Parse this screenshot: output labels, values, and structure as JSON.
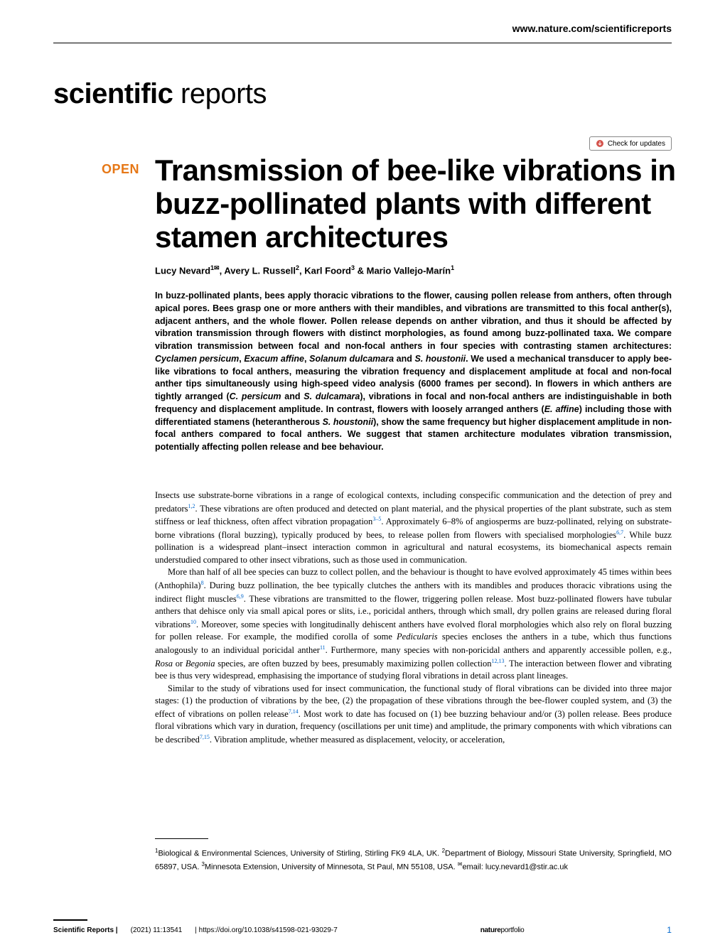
{
  "header": {
    "url": "www.nature.com/scientificreports",
    "journal_bold": "scientific",
    "journal_thin": " reports",
    "updates_label": "Check for updates",
    "open_label": "OPEN"
  },
  "article": {
    "title": "Transmission of bee-like vibrations in buzz-pollinated plants with different stamen architectures",
    "authors_html": "Lucy Nevard<sup>1✉</sup>, Avery L. Russell<sup>2</sup>, Karl Foord<sup>3</sup> & Mario Vallejo-Marín<sup>1</sup>",
    "abstract_html": "In buzz-pollinated plants, bees apply thoracic vibrations to the flower, causing pollen release from anthers, often through apical pores. Bees grasp one or more anthers with their mandibles, and vibrations are transmitted to this focal anther(s), adjacent anthers, and the whole flower. Pollen release depends on anther vibration, and thus it should be affected by vibration transmission through flowers with distinct morphologies, as found among buzz-pollinated taxa. We compare vibration transmission between focal and non-focal anthers in four species with contrasting stamen architectures: <em>Cyclamen persicum</em>, <em>Exacum affine</em>, <em>Solanum dulcamara</em> and <em>S. houstonii</em>. We used a mechanical transducer to apply bee-like vibrations to focal anthers, measuring the vibration frequency and displacement amplitude at focal and non-focal anther tips simultaneously using high-speed video analysis (6000 frames per second). In flowers in which anthers are tightly arranged (<em>C. persicum</em> and <em>S. dulcamara</em>), vibrations in focal and non-focal anthers are indistinguishable in both frequency and displacement amplitude. In contrast, flowers with loosely arranged anthers (<em>E. affine</em>) including those with differentiated stamens (heterantherous <em>S. houstonii</em>), show the same frequency but higher displacement amplitude in non-focal anthers compared to focal anthers. We suggest that stamen architecture modulates vibration transmission, potentially affecting pollen release and bee behaviour.",
    "para1_html": "Insects use substrate-borne vibrations in a range of ecological contexts, including conspecific communication and the detection of prey and predators<sup>1,2</sup>. These vibrations are often produced and detected on plant material, and the physical properties of the plant substrate, such as stem stiffness or leaf thickness, often affect vibration propagation<sup>3–5</sup>. Approximately 6–8% of angiosperms are buzz-pollinated, relying on substrate-borne vibrations (floral buzzing), typically produced by bees, to release pollen from flowers with specialised morphologies<sup>6,7</sup>. While buzz pollination is a widespread plant–insect interaction common in agricultural and natural ecosystems, its biomechanical aspects remain understudied compared to other insect vibrations, such as those used in communication.",
    "para2_html": "More than half of all bee species can buzz to collect pollen, and the behaviour is thought to have evolved approximately 45 times within bees (Anthophila)<sup>8</sup>. During buzz pollination, the bee typically clutches the anthers with its mandibles and produces thoracic vibrations using the indirect flight muscles<sup>6,9</sup>. These vibrations are transmitted to the flower, triggering pollen release. Most buzz-pollinated flowers have tubular anthers that dehisce only via small apical pores or slits, i.e., poricidal anthers, through which small, dry pollen grains are released during floral vibrations<sup>10</sup>. Moreover, some species with longitudinally dehiscent anthers have evolved floral morphologies which also rely on floral buzzing for pollen release. For example, the modified corolla of some <em>Pedicularis</em> species encloses the anthers in a tube, which thus functions analogously to an individual poricidal anther<sup>11</sup>. Furthermore, many species with non-poricidal anthers and apparently accessible pollen, e.g., <em>Rosa</em> or <em>Begonia</em> species, are often buzzed by bees, presumably maximizing pollen collection<sup>12,13</sup>. The interaction between flower and vibrating bee is thus very widespread, emphasising the importance of studying floral vibrations in detail across plant lineages.",
    "para3_html": "Similar to the study of vibrations used for insect communication, the functional study of floral vibrations can be divided into three major stages: (1) the production of vibrations by the bee, (2) the propagation of these vibrations through the bee-flower coupled system, and (3) the effect of vibrations on pollen release<sup>7,14</sup>. Most work to date has focused on (1) bee buzzing behaviour and/or (3) pollen release. Bees produce floral vibrations which vary in duration, frequency (oscillations per unit time) and amplitude, the primary components with which vibrations can be described<sup>7,15</sup>. Vibration amplitude, whether measured as displacement, velocity, or acceleration,",
    "affiliations_html": "<sup>1</sup>Biological & Environmental Sciences, University of Stirling, Stirling FK9 4LA, UK. <sup>2</sup>Department of Biology, Missouri State University, Springfield, MO 65897, USA. <sup>3</sup>Minnesota Extension, University of Minnesota, St Paul, MN 55108, USA. <sup>✉</sup>email: lucy.nevard1@stir.ac.uk"
  },
  "footer": {
    "journal": "Scientific Reports |",
    "citation": "(2021) 11:13541",
    "doi": "| https://doi.org/10.1038/s41598-021-93029-7",
    "portfolio_bold": "nature",
    "portfolio_thin": "portfolio",
    "page": "1"
  }
}
